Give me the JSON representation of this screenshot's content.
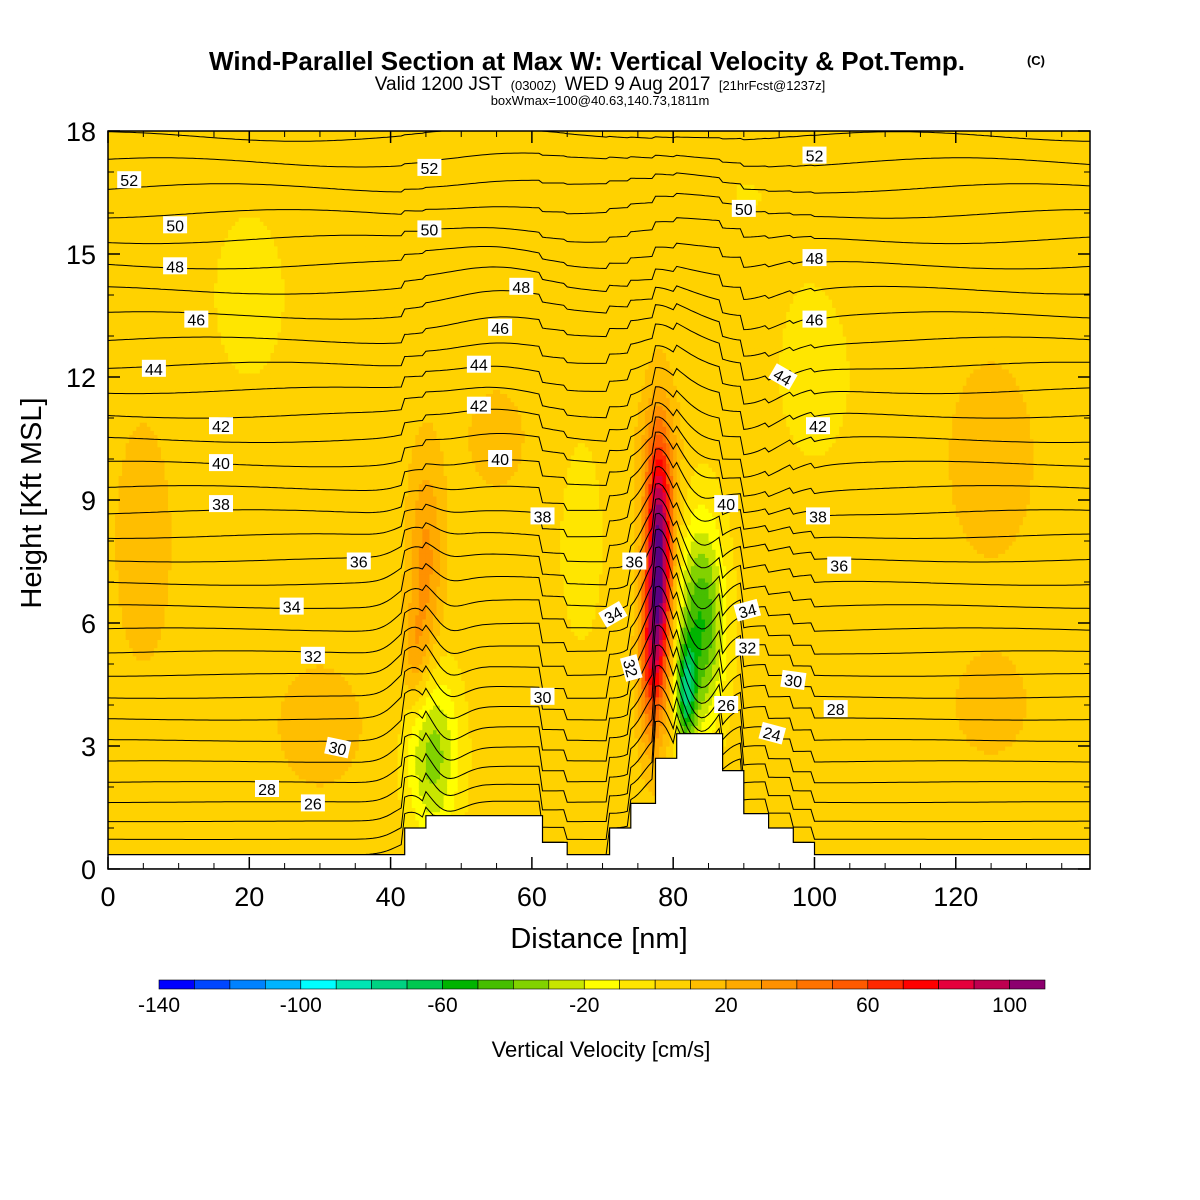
{
  "header": {
    "title": "Wind-Parallel Section at Max W: Vertical Velocity & Pot.Temp.",
    "copyright": "(C)",
    "valid_prefix": "Valid 1200 JST",
    "valid_utc": "(0300Z)",
    "valid_date": "WED 9 Aug 2017",
    "forecast": "[21hrFcst@1237z]",
    "box_info": "boxWmax=100@40.63,140.73,1811m"
  },
  "chart_data": {
    "type": "heatmap",
    "title": "Wind-Parallel Section at Max W: Vertical Velocity & Pot.Temp.",
    "xlabel": "Distance [nm]",
    "ylabel": "Height [Kft MSL]",
    "xlim": [
      0,
      139
    ],
    "ylim": [
      0,
      18
    ],
    "x_ticks": [
      0,
      20,
      40,
      60,
      80,
      100,
      120
    ],
    "y_ticks": [
      0,
      3,
      6,
      9,
      12,
      15,
      18
    ],
    "grid": false,
    "colorbar": {
      "title": "Vertical Velocity [cm/s]",
      "min": -140,
      "max": 110,
      "step": 10,
      "tick_values": [
        -140,
        -100,
        -60,
        -20,
        20,
        60,
        100
      ],
      "colors": [
        "#0000ff",
        "#0046ff",
        "#0082ff",
        "#00b4ff",
        "#00ffff",
        "#00e6b4",
        "#00d282",
        "#00c850",
        "#00b400",
        "#46be00",
        "#82d200",
        "#c8e600",
        "#ffff00",
        "#ffe600",
        "#ffd200",
        "#ffbe00",
        "#ffaa00",
        "#ff9100",
        "#ff7300",
        "#ff5a00",
        "#ff2800",
        "#ff0000",
        "#e6003c",
        "#be0050",
        "#8c006e",
        "#5a0082"
      ]
    },
    "background_velocity": 5,
    "velocity_features": [
      {
        "x": 78,
        "z": 7.5,
        "sx": 1.3,
        "sz": 2.0,
        "w": 110
      },
      {
        "x": 76.8,
        "z": 5.0,
        "sx": 1.2,
        "sz": 1.4,
        "w": 45
      },
      {
        "x": 78,
        "z": 10.0,
        "sx": 2.2,
        "sz": 1.2,
        "w": 15
      },
      {
        "x": 84,
        "z": 6.0,
        "sx": 2.3,
        "sz": 1.8,
        "w": -55
      },
      {
        "x": 81.8,
        "z": 4.3,
        "sx": 1.0,
        "sz": 0.9,
        "w": -60
      },
      {
        "x": 46,
        "z": 2.8,
        "sx": 2.6,
        "sz": 1.5,
        "w": -40
      },
      {
        "x": 45,
        "z": 7.5,
        "sx": 1.7,
        "sz": 1.8,
        "w": 28
      },
      {
        "x": 43.5,
        "z": 5.2,
        "sx": 1.3,
        "sz": 0.9,
        "w": 20
      },
      {
        "x": 55,
        "z": 10.5,
        "sx": 4.0,
        "sz": 1.2,
        "w": 8
      },
      {
        "x": 67,
        "z": 8.0,
        "sx": 3.0,
        "sz": 2.5,
        "w": -8
      },
      {
        "x": 100,
        "z": 12.0,
        "sx": 5.0,
        "sz": 2.0,
        "w": -8
      },
      {
        "x": 20,
        "z": 14.0,
        "sx": 5.0,
        "sz": 2.0,
        "w": -8
      },
      {
        "x": 5,
        "z": 8.0,
        "sx": 4.0,
        "sz": 3.0,
        "w": 8
      },
      {
        "x": 125,
        "z": 10.0,
        "sx": 5.0,
        "sz": 2.0,
        "w": 10
      },
      {
        "x": 125,
        "z": 4.0,
        "sx": 5.0,
        "sz": 1.2,
        "w": 8
      },
      {
        "x": 30,
        "z": 3.5,
        "sx": 6.0,
        "sz": 1.5,
        "w": 8
      },
      {
        "x": 90,
        "z": 16.5,
        "sx": 8.0,
        "sz": 1.5,
        "w": -5
      }
    ],
    "terrain": [
      [
        0,
        0.35
      ],
      [
        42,
        0.35
      ],
      [
        42,
        1.0
      ],
      [
        45,
        1.0
      ],
      [
        45,
        1.3
      ],
      [
        61.5,
        1.3
      ],
      [
        61.5,
        0.65
      ],
      [
        65,
        0.65
      ],
      [
        65,
        0.35
      ],
      [
        71,
        0.35
      ],
      [
        71,
        1.0
      ],
      [
        74,
        1.0
      ],
      [
        74,
        1.6
      ],
      [
        77.5,
        1.6
      ],
      [
        77.5,
        2.7
      ],
      [
        80.5,
        2.7
      ],
      [
        80.5,
        3.3
      ],
      [
        87,
        3.3
      ],
      [
        87,
        2.4
      ],
      [
        90,
        2.4
      ],
      [
        90,
        1.35
      ],
      [
        93.5,
        1.35
      ],
      [
        93.5,
        1.0
      ],
      [
        97,
        1.0
      ],
      [
        97,
        0.65
      ],
      [
        100,
        0.65
      ],
      [
        100,
        0.35
      ],
      [
        139,
        0.35
      ]
    ],
    "isentropes": {
      "theta_min": 21,
      "theta_max": 53,
      "interval": 1,
      "theta_surface": 21,
      "theta_top": 53
    },
    "isentrope_perturbations": [
      {
        "x": 78,
        "z": 5.8,
        "sx": 2.0,
        "sz": 3.5,
        "dz": 1.4
      },
      {
        "x": 84,
        "z": 6.0,
        "sx": 2.4,
        "sz": 3.0,
        "dz": -1.2
      },
      {
        "x": 44,
        "z": 4.0,
        "sx": 2.6,
        "sz": 3.0,
        "dz": 0.9
      },
      {
        "x": 47,
        "z": 3.5,
        "sx": 2.5,
        "sz": 2.5,
        "dz": -0.6
      },
      {
        "x": 90,
        "z": 11.5,
        "sx": 5.0,
        "sz": 2.5,
        "dz": -0.8
      },
      {
        "x": 55,
        "z": 12.5,
        "sx": 6.0,
        "sz": 3.0,
        "dz": 0.3
      }
    ],
    "contour_labels": [
      {
        "text": "52",
        "x": 3,
        "z": 16.8
      },
      {
        "text": "52",
        "x": 45.5,
        "z": 17.1
      },
      {
        "text": "52",
        "x": 100,
        "z": 17.4
      },
      {
        "text": "50",
        "x": 9.5,
        "z": 15.7
      },
      {
        "text": "50",
        "x": 45.5,
        "z": 15.6
      },
      {
        "text": "50",
        "x": 90,
        "z": 16.1
      },
      {
        "text": "48",
        "x": 9.5,
        "z": 14.7
      },
      {
        "text": "48",
        "x": 58.5,
        "z": 14.2
      },
      {
        "text": "48",
        "x": 100,
        "z": 14.9
      },
      {
        "text": "46",
        "x": 12.5,
        "z": 13.4
      },
      {
        "text": "46",
        "x": 55.5,
        "z": 13.2
      },
      {
        "text": "46",
        "x": 100,
        "z": 13.4
      },
      {
        "text": "44",
        "x": 6.5,
        "z": 12.2
      },
      {
        "text": "44",
        "x": 52.5,
        "z": 12.3
      },
      {
        "text": "44",
        "x": 95.5,
        "z": 12.0,
        "rotate": 30
      },
      {
        "text": "42",
        "x": 16,
        "z": 10.8
      },
      {
        "text": "42",
        "x": 52.5,
        "z": 11.3
      },
      {
        "text": "42",
        "x": 100.5,
        "z": 10.8
      },
      {
        "text": "40",
        "x": 16,
        "z": 9.9
      },
      {
        "text": "40",
        "x": 55.5,
        "z": 10.0
      },
      {
        "text": "40",
        "x": 87.5,
        "z": 8.9
      },
      {
        "text": "38",
        "x": 16,
        "z": 8.9
      },
      {
        "text": "38",
        "x": 61.5,
        "z": 8.6
      },
      {
        "text": "38",
        "x": 100.5,
        "z": 8.6
      },
      {
        "text": "36",
        "x": 35.5,
        "z": 7.5
      },
      {
        "text": "36",
        "x": 74.5,
        "z": 7.5
      },
      {
        "text": "36",
        "x": 103.5,
        "z": 7.4
      },
      {
        "text": "34",
        "x": 26,
        "z": 6.4
      },
      {
        "text": "34",
        "x": 71.5,
        "z": 6.2,
        "rotate": -30
      },
      {
        "text": "34",
        "x": 90.5,
        "z": 6.3,
        "rotate": -15
      },
      {
        "text": "32",
        "x": 29,
        "z": 5.2
      },
      {
        "text": "32",
        "x": 74,
        "z": 4.9,
        "rotate": 75
      },
      {
        "text": "32",
        "x": 90.5,
        "z": 5.4
      },
      {
        "text": "30",
        "x": 32.5,
        "z": 2.95,
        "rotate": 12
      },
      {
        "text": "30",
        "x": 61.5,
        "z": 4.2
      },
      {
        "text": "30",
        "x": 97,
        "z": 4.6,
        "rotate": 8
      },
      {
        "text": "28",
        "x": 22.5,
        "z": 1.95
      },
      {
        "text": "28",
        "x": 103,
        "z": 3.9
      },
      {
        "text": "26",
        "x": 29,
        "z": 1.6
      },
      {
        "text": "26",
        "x": 87.5,
        "z": 4.0
      },
      {
        "text": "24",
        "x": 94,
        "z": 3.3,
        "rotate": 15
      }
    ]
  }
}
